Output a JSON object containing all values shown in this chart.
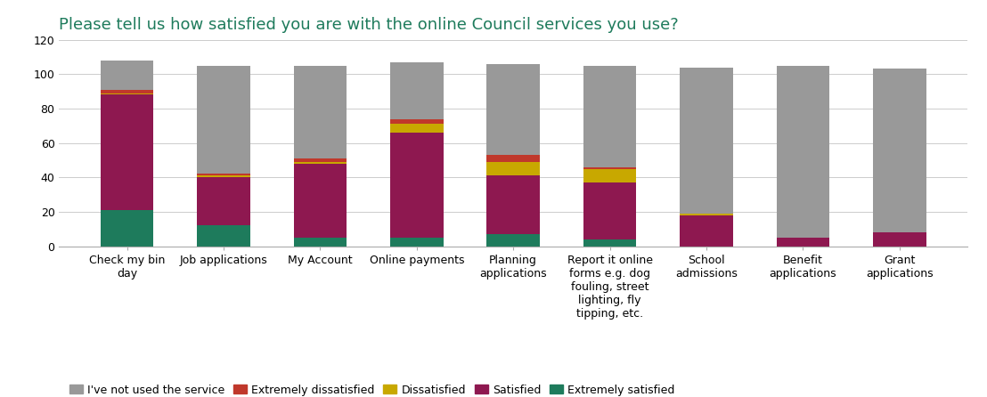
{
  "title": "Please tell us how satisfied you are with the online Council services you use?",
  "categories": [
    "Check my bin\nday",
    "Job applications",
    "My Account",
    "Online payments",
    "Planning\napplications",
    "Report it online\nforms e.g. dog\nfouling, street\nlighting, fly\ntipping, etc.",
    "School\nadmissions",
    "Benefit\napplications",
    "Grant\napplications"
  ],
  "series": {
    "Extremely satisfied": [
      21,
      12,
      5,
      5,
      7,
      4,
      0,
      0,
      0
    ],
    "Satisfied": [
      67,
      28,
      43,
      61,
      34,
      33,
      18,
      5,
      8
    ],
    "Dissatisfied": [
      1,
      1,
      1,
      5,
      8,
      8,
      1,
      0,
      0
    ],
    "Extremely dissatisfied": [
      2,
      1,
      2,
      3,
      4,
      1,
      0,
      0,
      0
    ],
    "I've not used the service": [
      17,
      63,
      54,
      33,
      53,
      59,
      85,
      100,
      95
    ]
  },
  "colors": {
    "I've not used the service": "#999999",
    "Extremely dissatisfied": "#c0382b",
    "Dissatisfied": "#c8a800",
    "Satisfied": "#8e1850",
    "Extremely satisfied": "#1e7b5c"
  },
  "stack_order": [
    "Extremely satisfied",
    "Satisfied",
    "Dissatisfied",
    "Extremely dissatisfied",
    "I've not used the service"
  ],
  "legend_order": [
    "I've not used the service",
    "Extremely dissatisfied",
    "Dissatisfied",
    "Satisfied",
    "Extremely satisfied"
  ],
  "ylim": [
    0,
    120
  ],
  "yticks": [
    0,
    20,
    40,
    60,
    80,
    100,
    120
  ],
  "title_color": "#1e7b5c",
  "title_fontsize": 13.0,
  "legend_fontsize": 9.0,
  "tick_fontsize": 9.0,
  "bar_width": 0.55
}
